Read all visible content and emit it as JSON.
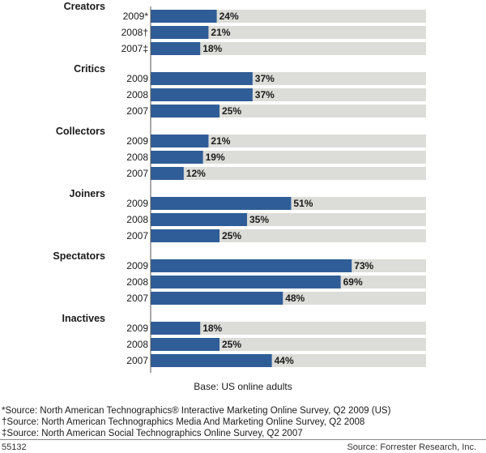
{
  "chart_data": {
    "type": "bar",
    "orientation": "horizontal",
    "xlim": [
      0,
      100
    ],
    "colors": {
      "bar": "#2f5d97",
      "track": "#dcdcd8",
      "axis": "#555555"
    },
    "groups": [
      {
        "name": "Creators",
        "bars": [
          {
            "label": "2009*",
            "value": 24,
            "value_label": "24%"
          },
          {
            "label": "2008†",
            "value": 21,
            "value_label": "21%"
          },
          {
            "label": "2007‡",
            "value": 18,
            "value_label": "18%"
          }
        ]
      },
      {
        "name": "Critics",
        "bars": [
          {
            "label": "2009",
            "value": 37,
            "value_label": "37%"
          },
          {
            "label": "2008",
            "value": 37,
            "value_label": "37%"
          },
          {
            "label": "2007",
            "value": 25,
            "value_label": "25%"
          }
        ]
      },
      {
        "name": "Collectors",
        "bars": [
          {
            "label": "2009",
            "value": 21,
            "value_label": "21%"
          },
          {
            "label": "2008",
            "value": 19,
            "value_label": "19%"
          },
          {
            "label": "2007",
            "value": 12,
            "value_label": "12%"
          }
        ]
      },
      {
        "name": "Joiners",
        "bars": [
          {
            "label": "2009",
            "value": 51,
            "value_label": "51%"
          },
          {
            "label": "2008",
            "value": 35,
            "value_label": "35%"
          },
          {
            "label": "2007",
            "value": 25,
            "value_label": "25%"
          }
        ]
      },
      {
        "name": "Spectators",
        "bars": [
          {
            "label": "2009",
            "value": 73,
            "value_label": "73%"
          },
          {
            "label": "2008",
            "value": 69,
            "value_label": "69%"
          },
          {
            "label": "2007",
            "value": 48,
            "value_label": "48%"
          }
        ]
      },
      {
        "name": "Inactives",
        "bars": [
          {
            "label": "2009",
            "value": 18,
            "value_label": "18%"
          },
          {
            "label": "2008",
            "value": 25,
            "value_label": "25%"
          },
          {
            "label": "2007",
            "value": 44,
            "value_label": "44%"
          }
        ]
      }
    ]
  },
  "base_note": "Base: US online adults",
  "sources": [
    "*Source: North American Technographics® Interactive Marketing Online Survey, Q2 2009 (US)",
    "†Source: North American Technographics Media And Marketing Online Survey, Q2 2008",
    "‡Source: North American Social Technographics Online Survey, Q2 2007"
  ],
  "figure_id": "55132",
  "credit": "Source: Forrester Research, Inc."
}
